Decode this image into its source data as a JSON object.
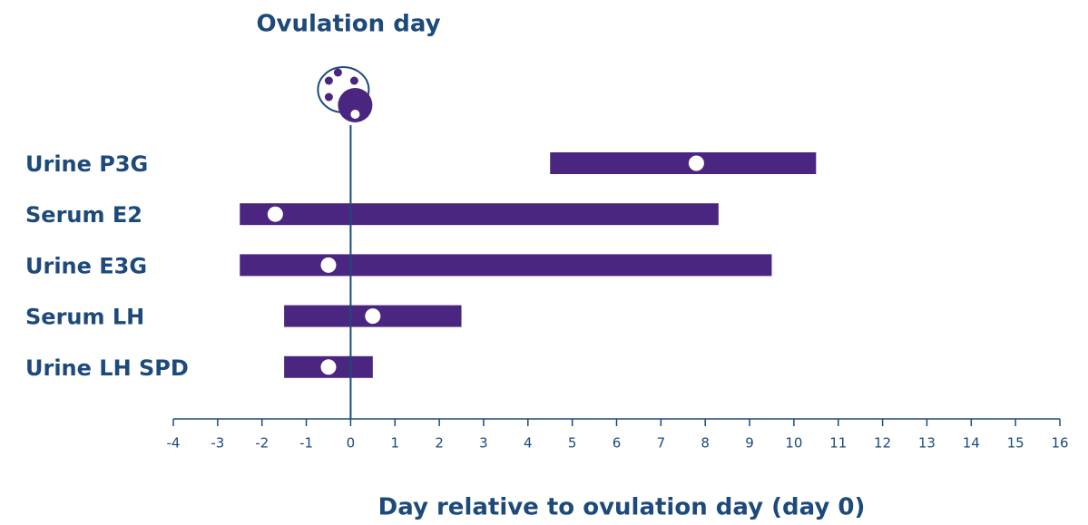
{
  "chart_data": {
    "type": "range",
    "annotation": "Ovulation day",
    "x_label": "Day relative to ovulation day (day 0)",
    "categories": [
      "Urine P3G",
      "Serum E2",
      "Urine E3G",
      "Serum LH",
      "Urine LH SPD"
    ],
    "low": [
      4.5,
      -2.5,
      -2.5,
      -1.5,
      -1.5
    ],
    "high": [
      10.5,
      8.3,
      9.5,
      2.5,
      0.5
    ],
    "marker": [
      7.8,
      -1.7,
      -0.5,
      0.5,
      -0.5
    ],
    "reference_x": 0,
    "color": "#4b2680",
    "marker_color": "#ffffff",
    "text_color": "#1d4a7a",
    "xlim": [
      -4,
      16
    ],
    "xticks": [
      -4,
      -3,
      -2,
      -1,
      0,
      1,
      2,
      3,
      4,
      5,
      6,
      7,
      8,
      9,
      10,
      11,
      12,
      13,
      14,
      15,
      16
    ]
  }
}
